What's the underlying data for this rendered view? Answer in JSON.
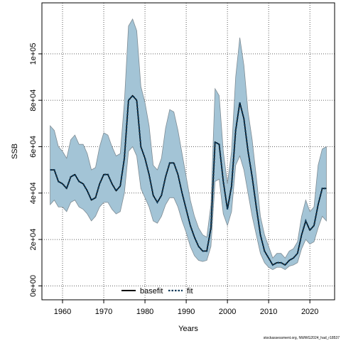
{
  "chart_data": {
    "type": "line",
    "title": "",
    "xlabel": "Years",
    "ylabel": "SSB",
    "xlim": [
      1955,
      2026
    ],
    "ylim": [
      -6000,
      122000
    ],
    "x_ticks": [
      1960,
      1970,
      1980,
      1990,
      2000,
      2010,
      2020
    ],
    "x_tick_labels": [
      "1960",
      "1970",
      "1980",
      "1990",
      "2000",
      "2010",
      "2020"
    ],
    "y_ticks": [
      0,
      20000,
      40000,
      60000,
      80000,
      100000
    ],
    "y_tick_labels": [
      "0e+00",
      "2e+04",
      "4e+04",
      "6e+04",
      "8e+04",
      "1e+05"
    ],
    "grid": true,
    "legend_position": "bottom",
    "x": [
      1957,
      1958,
      1959,
      1960,
      1961,
      1962,
      1963,
      1964,
      1965,
      1966,
      1967,
      1968,
      1969,
      1970,
      1971,
      1972,
      1973,
      1974,
      1975,
      1976,
      1977,
      1978,
      1979,
      1980,
      1981,
      1982,
      1983,
      1984,
      1985,
      1986,
      1987,
      1988,
      1989,
      1990,
      1991,
      1992,
      1993,
      1994,
      1995,
      1996,
      1997,
      1998,
      1999,
      2000,
      2001,
      2002,
      2003,
      2004,
      2005,
      2006,
      2007,
      2008,
      2009,
      2010,
      2011,
      2012,
      2013,
      2014,
      2015,
      2016,
      2017,
      2018,
      2019,
      2020,
      2021,
      2022,
      2023,
      2024
    ],
    "series": [
      {
        "name": "basefit",
        "style": "solid",
        "values": [
          50000,
          50000,
          45000,
          44000,
          42000,
          47000,
          48000,
          45000,
          44000,
          41000,
          37000,
          38000,
          44000,
          48000,
          48000,
          44000,
          41000,
          43000,
          55000,
          80000,
          82000,
          80000,
          60000,
          55000,
          48000,
          39000,
          36000,
          39000,
          47000,
          53000,
          53000,
          48000,
          40000,
          33000,
          26000,
          21000,
          17000,
          15000,
          15000,
          25000,
          62000,
          61000,
          45000,
          33000,
          43000,
          67000,
          79000,
          72000,
          58000,
          47000,
          34000,
          22000,
          15000,
          12000,
          9000,
          10000,
          10000,
          9000,
          11000,
          12000,
          14000,
          22000,
          28000,
          24000,
          26000,
          35000,
          42000,
          42000
        ]
      },
      {
        "name": "fit",
        "style": "dotted",
        "values": [
          50000,
          50000,
          45000,
          44000,
          42000,
          47000,
          48000,
          45000,
          44000,
          41000,
          37000,
          38000,
          44000,
          48000,
          48000,
          44000,
          41000,
          43000,
          55000,
          80000,
          82000,
          80000,
          60000,
          55000,
          48000,
          39000,
          36000,
          39000,
          47000,
          53000,
          53000,
          48000,
          40000,
          33000,
          26000,
          21000,
          17000,
          15000,
          15000,
          25000,
          62000,
          61000,
          45000,
          33000,
          43000,
          67000,
          79000,
          72000,
          58000,
          47000,
          34000,
          22000,
          15000,
          12000,
          9000,
          10000,
          10000,
          9000,
          11000,
          12000,
          14000,
          22000,
          28000,
          24000,
          26000,
          35000,
          42000,
          42000
        ]
      }
    ],
    "ci_band": {
      "lower": [
        35000,
        37000,
        34000,
        34000,
        32000,
        36000,
        37000,
        34000,
        33000,
        31000,
        28000,
        30000,
        34000,
        36000,
        36000,
        33000,
        31000,
        32000,
        40000,
        58000,
        60000,
        56000,
        42000,
        38000,
        34000,
        28000,
        27000,
        30000,
        35000,
        38000,
        38000,
        34000,
        28000,
        23000,
        17000,
        13000,
        11000,
        10500,
        11000,
        17000,
        45000,
        46000,
        31000,
        26000,
        32000,
        52000,
        56000,
        50000,
        40000,
        30000,
        22000,
        14000,
        10000,
        8000,
        7000,
        8000,
        8000,
        7000,
        8500,
        9000,
        10000,
        16000,
        20000,
        18000,
        19000,
        25000,
        30000,
        28000
      ],
      "upper": [
        69000,
        67000,
        60000,
        58000,
        55000,
        63000,
        65000,
        61000,
        61000,
        57000,
        50000,
        51000,
        60000,
        66000,
        65000,
        60000,
        56000,
        57000,
        79000,
        112000,
        115000,
        110000,
        86000,
        79000,
        69000,
        52000,
        50000,
        55000,
        68000,
        76000,
        75000,
        67000,
        57000,
        47000,
        37000,
        30000,
        25000,
        22000,
        21000,
        35000,
        85000,
        82000,
        58000,
        44000,
        58000,
        90000,
        107000,
        95000,
        75000,
        63000,
        47000,
        30000,
        22000,
        17000,
        12000,
        14000,
        14000,
        12000,
        15000,
        16000,
        19000,
        30000,
        37000,
        32000,
        34000,
        52000,
        59000,
        60000
      ]
    },
    "band_color": "#a3c4d6",
    "band_edge_color": "#7f8c94",
    "line_color": "#000000",
    "fit_color": "#0d3a5a",
    "legend": [
      {
        "label": "basefit",
        "style": "solid"
      },
      {
        "label": "fit",
        "style": "dotted"
      }
    ]
  },
  "footer": "stockassessment.org, NWWG2024_had_r18537"
}
